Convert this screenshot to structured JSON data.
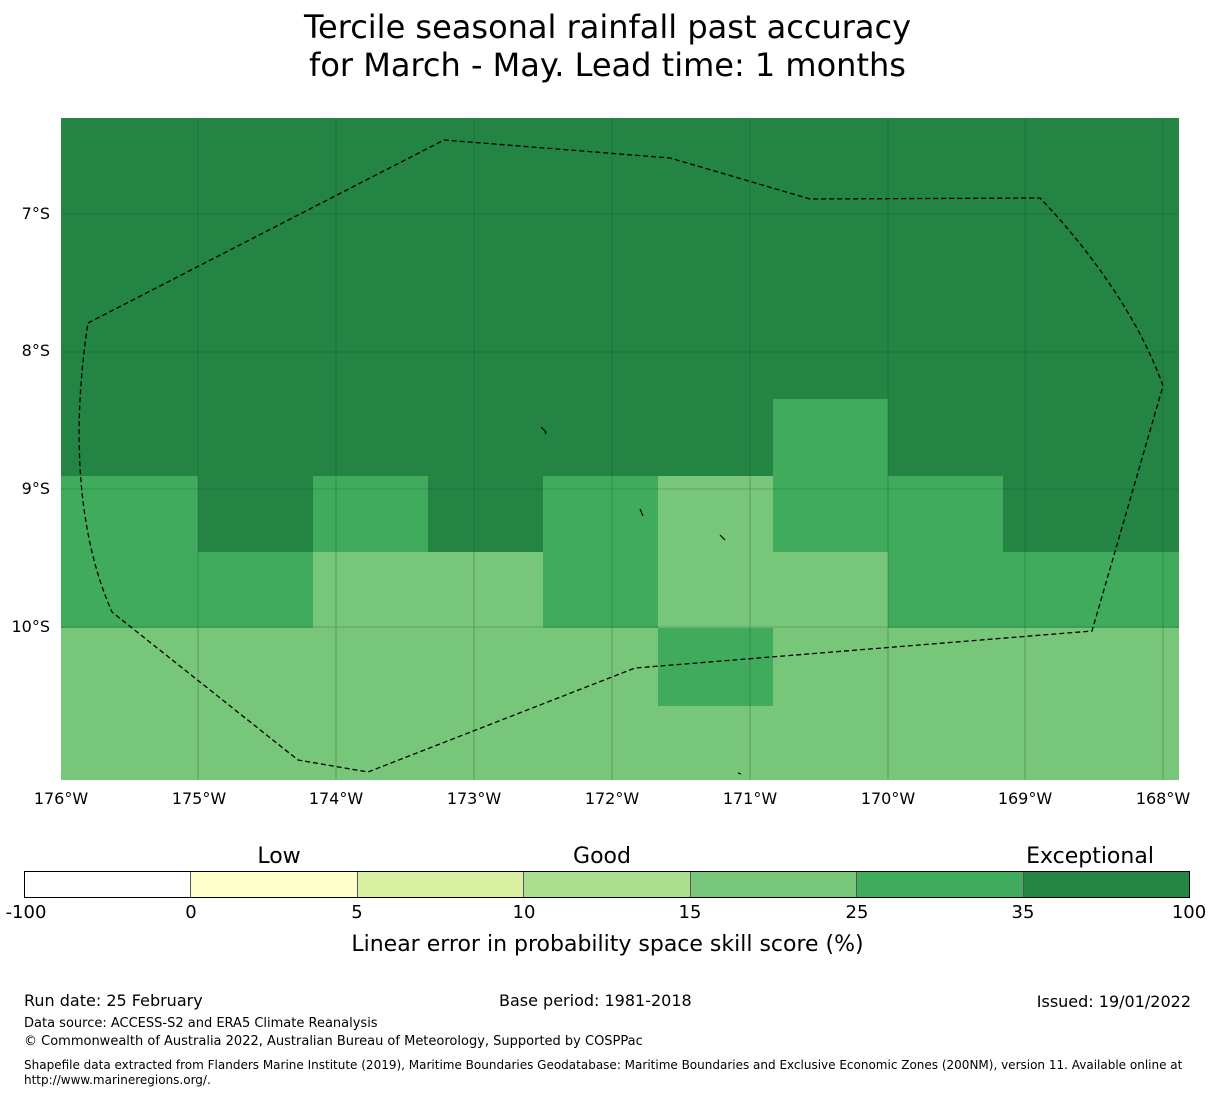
{
  "title": {
    "line1": "Tercile seasonal rainfall past accuracy",
    "line2": "for March - May. Lead time: 1 months"
  },
  "map": {
    "lat_labels": [
      "7°S",
      "8°S",
      "9°S",
      "10°S"
    ],
    "lon_labels": [
      "176°W",
      "175°W",
      "174°W",
      "173°W",
      "172°W",
      "171°W",
      "170°W",
      "169°W",
      "168°W"
    ],
    "colors": {
      "exceptional": "#238443",
      "very_good": "#41ab5d",
      "good": "#78c679",
      "boundary": "#000000",
      "grid": "#1a4d28"
    }
  },
  "colorbar": {
    "categories": [
      "Low",
      "Good",
      "Exceptional"
    ],
    "ticks": [
      "-100",
      "0",
      "5",
      "10",
      "15",
      "25",
      "35",
      "100"
    ],
    "colors": [
      "#ffffff",
      "#ffffcc",
      "#d9f0a3",
      "#addd8e",
      "#78c679",
      "#41ab5d",
      "#238443"
    ],
    "label": "Linear error in probability space skill score (%)"
  },
  "footer": {
    "run_date": "Run date: 25 February",
    "base_period": "Base period: 1981-2018",
    "issued": "Issued: 19/01/2022",
    "data_source": "Data source: ACCESS-S2 and ERA5 Climate Reanalysis",
    "copyright": "© Commonwealth of Australia 2022, Australian Bureau of Meteorology, Supported by COSPPac",
    "shapefile_line1": "Shapefile data extracted from Flanders Marine Institute (2019), Maritime Boundaries Geodatabase: Maritime Boundaries and Exclusive Economic Zones (200NM), version 11. Available online at",
    "shapefile_line2": "http://www.marineregions.org/."
  }
}
